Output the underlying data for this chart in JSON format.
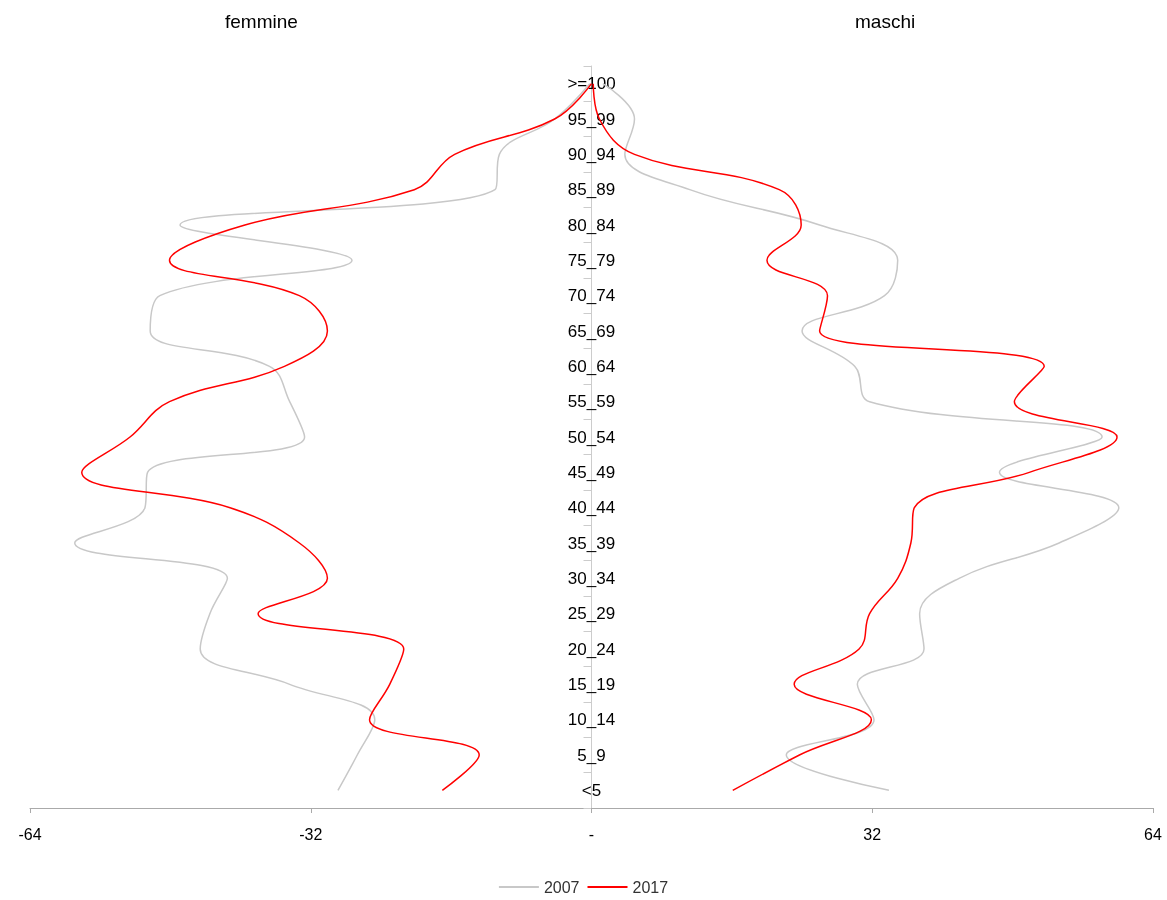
{
  "chart_data": {
    "type": "line",
    "orientation": "horizontal",
    "annotations": [
      "femmine",
      "maschi"
    ],
    "categories": [
      ">=100",
      "95_99",
      "90_94",
      "85_89",
      "80_84",
      "75_79",
      "70_74",
      "65_69",
      "60_64",
      "55_59",
      "50_54",
      "45_49",
      "40_44",
      "35_39",
      "30_34",
      "25_29",
      "20_24",
      "15_19",
      "10_14",
      "5_9",
      "<5"
    ],
    "series": [
      {
        "name": "2007",
        "color": "#c8c8c8",
        "values": [
          -0.2,
          -4.2,
          -10.5,
          -11.0,
          -46.9,
          -27.3,
          -49.2,
          -50.3,
          -36.7,
          -34.4,
          -32.7,
          -50.6,
          -50.9,
          -58.9,
          -41.5,
          -43.5,
          -44.6,
          -34.4,
          -24.7,
          -26.7,
          -28.9
        ]
      },
      {
        "name": "2017",
        "color": "#ff0000",
        "values": [
          0,
          -4.2,
          -15.6,
          -20.2,
          -39.5,
          -48.1,
          -33.3,
          -30.1,
          -35.0,
          -48.1,
          -52.6,
          -58.1,
          -41.2,
          -33.3,
          -30.1,
          -38.0,
          -21.4,
          -23.0,
          -25.3,
          -12.8,
          -17.0
        ]
      },
      {
        "color": "#c8c8c8",
        "values": [
          1.3,
          4.9,
          3.8,
          11.2,
          26.0,
          34.9,
          33.4,
          24.0,
          30.0,
          31.7,
          58.2,
          46.5,
          60.1,
          53.3,
          41.9,
          37.4,
          37.9,
          30.3,
          32.2,
          22.2,
          33.9
        ]
      },
      {
        "color": "#ff0000",
        "values": [
          0.2,
          0.9,
          4.9,
          21.4,
          23.9,
          20.0,
          26.9,
          26.0,
          51.6,
          48.2,
          59.9,
          49.9,
          36.8,
          36.4,
          34.9,
          31.7,
          30.5,
          23.1,
          31.9,
          23.7,
          16.1
        ]
      }
    ],
    "xlim": [
      -64,
      64
    ],
    "xticks": [
      -64,
      -32,
      {
        "value": 0,
        "label": "-"
      },
      32,
      64
    ],
    "legend": "bottom",
    "marker": "none",
    "line_style": "solid"
  }
}
